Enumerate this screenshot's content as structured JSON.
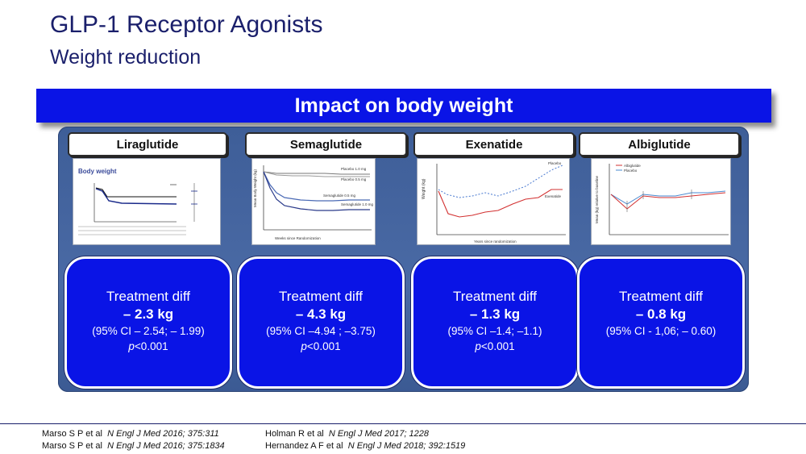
{
  "title": "GLP-1 Receptor Agonists",
  "subtitle": "Weight reduction",
  "banner": "Impact on body weight",
  "drugs": [
    {
      "name": "Liraglutide",
      "diff_label": "Treatment diff",
      "diff_value": "– 2.3 kg",
      "ci": "(95% CI – 2.54; – 1.99)",
      "p_italic": "p",
      "p_value": "<0.001"
    },
    {
      "name": "Semaglutide",
      "diff_label": "Treatment diff",
      "diff_value": "– 4.3 kg",
      "ci": "(95% CI –4.94 ; –3.75)",
      "p_italic": "p",
      "p_value": "<0.001"
    },
    {
      "name": "Exenatide",
      "diff_label": "Treatment diff",
      "diff_value": "– 1.3 kg",
      "ci": "(95% CI –1.4; –1.1)",
      "p_italic": "p",
      "p_value": "<0.001"
    },
    {
      "name": "Albiglutide",
      "diff_label": "Treatment diff",
      "diff_value": "– 0.8 kg",
      "ci": "(95% CI - 1,06; – 0.60)"
    }
  ],
  "thumbnails": {
    "liraglutide": {
      "title": "Body weight"
    },
    "semaglutide": {
      "legend": [
        "Placebo 1.0 mg",
        "Placebo 0.5 mg",
        "Semaglutide 0.5 mg",
        "Semaglutide 1.0 mg"
      ],
      "ylabel": "Mean Body Weight (kg)",
      "xlabel": "Weeks since Randomization",
      "xticks": [
        "0",
        "8",
        "16",
        "30",
        "44",
        "56",
        "68",
        "80",
        "94",
        "104"
      ]
    },
    "exenatide": {
      "ylabel": "Weight (kg)",
      "xlabel": "Years since randomization",
      "series": [
        "Placebo",
        "Exenatide"
      ],
      "xticks": [
        "0",
        "1",
        "2",
        "3",
        "4",
        "5"
      ]
    },
    "albiglutide": {
      "legend": [
        "Albiglutide",
        "Placebo"
      ],
      "ylabel": "Mean (kg) relative to baseline",
      "xticks": [
        "0",
        "4",
        "8",
        "12",
        "16",
        "20",
        "24",
        "28"
      ]
    }
  },
  "references": [
    {
      "authors": "Marso S P et al",
      "journal": "N Engl J Med 2016; 375:311"
    },
    {
      "authors": "Marso S P et al",
      "journal": "N Engl J Med 2016; 375:1834"
    },
    {
      "authors": "Holman R et al",
      "journal": "N Engl J Med 2017; 1228"
    },
    {
      "authors": "Hernandez A F et al",
      "journal": "N Engl J Med 2018; 392:1519"
    }
  ]
}
